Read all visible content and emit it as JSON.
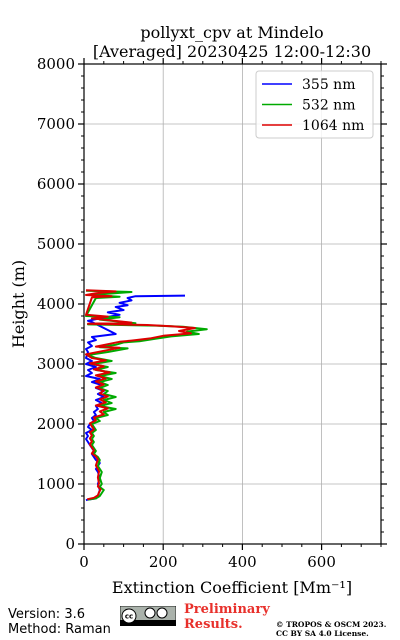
{
  "chart_data": {
    "type": "line",
    "title": [
      "pollyxt_cpv at Mindelo",
      "[Averaged] 20230425 12:00-12:30"
    ],
    "xlabel": "Extinction Coefficient [Mm⁻¹]",
    "ylabel": "Height (m)",
    "xlim": [
      0,
      750
    ],
    "ylim": [
      0,
      8000
    ],
    "xticks": [
      0,
      200,
      400,
      600
    ],
    "yticks": [
      0,
      1000,
      2000,
      3000,
      4000,
      5000,
      6000,
      7000,
      8000
    ],
    "grid": true,
    "legend_position": "top-right",
    "series": [
      {
        "name": "355 nm",
        "color": "#0000ff",
        "points": [
          [
            255,
            4140
          ],
          [
            130,
            4130
          ],
          [
            110,
            4100
          ],
          [
            120,
            4060
          ],
          [
            90,
            4020
          ],
          [
            110,
            3980
          ],
          [
            80,
            3950
          ],
          [
            100,
            3900
          ],
          [
            60,
            3860
          ],
          [
            90,
            3820
          ],
          [
            40,
            3760
          ],
          [
            10,
            3720
          ],
          [
            20,
            3700
          ],
          [
            80,
            3500
          ],
          [
            20,
            3450
          ],
          [
            30,
            3400
          ],
          [
            10,
            3360
          ],
          [
            20,
            3300
          ],
          [
            5,
            3250
          ],
          [
            10,
            3200
          ],
          [
            5,
            3100
          ],
          [
            20,
            3050
          ],
          [
            5,
            3000
          ],
          [
            30,
            2950
          ],
          [
            10,
            2900
          ],
          [
            20,
            2850
          ],
          [
            5,
            2800
          ],
          [
            40,
            2750
          ],
          [
            20,
            2700
          ],
          [
            45,
            2650
          ],
          [
            30,
            2600
          ],
          [
            50,
            2550
          ],
          [
            35,
            2500
          ],
          [
            50,
            2450
          ],
          [
            30,
            2400
          ],
          [
            45,
            2350
          ],
          [
            30,
            2300
          ],
          [
            35,
            2250
          ],
          [
            25,
            2200
          ],
          [
            30,
            2150
          ],
          [
            20,
            2100
          ],
          [
            25,
            2050
          ],
          [
            15,
            2000
          ],
          [
            10,
            1950
          ],
          [
            20,
            1900
          ],
          [
            5,
            1850
          ],
          [
            10,
            1800
          ],
          [
            5,
            1750
          ],
          [
            10,
            1700
          ],
          [
            15,
            1650
          ],
          [
            20,
            1600
          ],
          [
            25,
            1550
          ],
          [
            20,
            1500
          ],
          [
            25,
            1450
          ],
          [
            30,
            1400
          ],
          [
            40,
            1350
          ],
          [
            35,
            1300
          ],
          [
            30,
            1250
          ],
          [
            35,
            1200
          ],
          [
            40,
            1100
          ],
          [
            35,
            1000
          ],
          [
            40,
            900
          ],
          [
            35,
            800
          ],
          [
            30,
            760
          ],
          [
            10,
            740
          ],
          [
            5,
            730
          ]
        ]
      },
      {
        "name": "532 nm",
        "color": "#00aa00",
        "points": [
          [
            5,
            4220
          ],
          [
            120,
            4200
          ],
          [
            60,
            4170
          ],
          [
            20,
            4150
          ],
          [
            90,
            4120
          ],
          [
            30,
            4100
          ],
          [
            5,
            3800
          ],
          [
            90,
            3780
          ],
          [
            40,
            3740
          ],
          [
            130,
            3680
          ],
          [
            10,
            3660
          ],
          [
            180,
            3640
          ],
          [
            250,
            3620
          ],
          [
            310,
            3580
          ],
          [
            260,
            3540
          ],
          [
            290,
            3500
          ],
          [
            220,
            3460
          ],
          [
            180,
            3420
          ],
          [
            140,
            3380
          ],
          [
            100,
            3360
          ],
          [
            80,
            3320
          ],
          [
            40,
            3280
          ],
          [
            110,
            3260
          ],
          [
            60,
            3200
          ],
          [
            10,
            3150
          ],
          [
            30,
            3100
          ],
          [
            70,
            3050
          ],
          [
            20,
            3000
          ],
          [
            60,
            2950
          ],
          [
            30,
            2900
          ],
          [
            80,
            2850
          ],
          [
            40,
            2800
          ],
          [
            70,
            2750
          ],
          [
            40,
            2700
          ],
          [
            60,
            2650
          ],
          [
            40,
            2600
          ],
          [
            60,
            2550
          ],
          [
            50,
            2500
          ],
          [
            80,
            2450
          ],
          [
            50,
            2400
          ],
          [
            70,
            2350
          ],
          [
            40,
            2300
          ],
          [
            80,
            2250
          ],
          [
            50,
            2200
          ],
          [
            60,
            2150
          ],
          [
            30,
            2100
          ],
          [
            40,
            2050
          ],
          [
            20,
            2000
          ],
          [
            25,
            1950
          ],
          [
            30,
            1900
          ],
          [
            20,
            1850
          ],
          [
            25,
            1800
          ],
          [
            20,
            1750
          ],
          [
            25,
            1700
          ],
          [
            20,
            1650
          ],
          [
            25,
            1600
          ],
          [
            30,
            1550
          ],
          [
            25,
            1500
          ],
          [
            35,
            1450
          ],
          [
            40,
            1400
          ],
          [
            35,
            1300
          ],
          [
            45,
            1200
          ],
          [
            40,
            1100
          ],
          [
            45,
            1000
          ],
          [
            40,
            950
          ],
          [
            50,
            900
          ],
          [
            45,
            850
          ],
          [
            40,
            800
          ],
          [
            30,
            760
          ],
          [
            10,
            740
          ]
        ]
      },
      {
        "name": "1064 nm",
        "color": "#dd0000",
        "points": [
          [
            5,
            4230
          ],
          [
            80,
            4210
          ],
          [
            30,
            4180
          ],
          [
            5,
            4150
          ],
          [
            70,
            4130
          ],
          [
            20,
            4110
          ],
          [
            5,
            3820
          ],
          [
            60,
            3790
          ],
          [
            20,
            3760
          ],
          [
            120,
            3690
          ],
          [
            10,
            3670
          ],
          [
            160,
            3650
          ],
          [
            220,
            3630
          ],
          [
            280,
            3600
          ],
          [
            240,
            3550
          ],
          [
            270,
            3510
          ],
          [
            200,
            3470
          ],
          [
            170,
            3430
          ],
          [
            120,
            3390
          ],
          [
            90,
            3370
          ],
          [
            60,
            3330
          ],
          [
            30,
            3290
          ],
          [
            90,
            3270
          ],
          [
            50,
            3220
          ],
          [
            5,
            3160
          ],
          [
            20,
            3100
          ],
          [
            55,
            3060
          ],
          [
            15,
            3010
          ],
          [
            50,
            2960
          ],
          [
            25,
            2910
          ],
          [
            65,
            2860
          ],
          [
            30,
            2810
          ],
          [
            55,
            2760
          ],
          [
            30,
            2710
          ],
          [
            50,
            2660
          ],
          [
            30,
            2610
          ],
          [
            50,
            2560
          ],
          [
            40,
            2510
          ],
          [
            60,
            2460
          ],
          [
            40,
            2410
          ],
          [
            55,
            2360
          ],
          [
            30,
            2310
          ],
          [
            60,
            2260
          ],
          [
            40,
            2210
          ],
          [
            50,
            2160
          ],
          [
            25,
            2110
          ],
          [
            30,
            2060
          ],
          [
            15,
            2010
          ],
          [
            20,
            1960
          ],
          [
            25,
            1910
          ],
          [
            15,
            1860
          ],
          [
            20,
            1810
          ],
          [
            15,
            1760
          ],
          [
            20,
            1710
          ],
          [
            15,
            1660
          ],
          [
            20,
            1610
          ],
          [
            25,
            1560
          ],
          [
            20,
            1510
          ],
          [
            30,
            1460
          ],
          [
            35,
            1410
          ],
          [
            30,
            1310
          ],
          [
            38,
            1210
          ],
          [
            35,
            1110
          ],
          [
            38,
            1010
          ],
          [
            35,
            960
          ],
          [
            42,
            910
          ],
          [
            38,
            860
          ],
          [
            35,
            810
          ],
          [
            25,
            770
          ],
          [
            8,
            745
          ]
        ]
      }
    ]
  },
  "footer": {
    "version": "Version: 3.6",
    "method": "Method: Raman",
    "preliminary": "Preliminary Results.",
    "copyright_line1": "© TROPOS & OSCM 2023.",
    "copyright_line2": "CC BY SA 4.0 License."
  }
}
